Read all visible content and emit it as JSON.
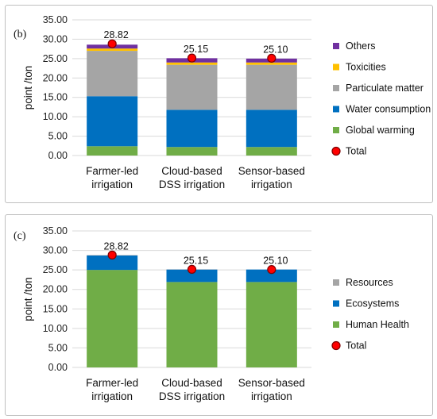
{
  "chart_data": [
    {
      "type": "bar",
      "stacked": true,
      "panel_label": "(b)",
      "ylabel": "point /ton",
      "ylim": [
        0,
        35
      ],
      "yticks": [
        "0.00",
        "5.00",
        "10.00",
        "15.00",
        "20.00",
        "25.00",
        "30.00",
        "35.00"
      ],
      "grid": true,
      "legend_position": "right",
      "categories": [
        [
          "Farmer-led",
          "irrigation"
        ],
        [
          "Cloud-based",
          "DSS irrigation"
        ],
        [
          "Sensor-based",
          "irrigation"
        ]
      ],
      "series": [
        {
          "name": "Global warming",
          "color": "#70ad47",
          "values": [
            2.4,
            2.2,
            2.2
          ]
        },
        {
          "name": "Water consumption",
          "color": "#0070c0",
          "values": [
            12.9,
            9.6,
            9.6
          ]
        },
        {
          "name": "Particulate matter",
          "color": "#a5a5a5",
          "values": [
            11.7,
            11.6,
            11.6
          ]
        },
        {
          "name": "Toxicities",
          "color": "#ffc000",
          "values": [
            0.6,
            0.6,
            0.6
          ]
        },
        {
          "name": "Others",
          "color": "#7030a0",
          "values": [
            1.0,
            1.1,
            1.0
          ]
        }
      ],
      "total": {
        "name": "Total",
        "values": [
          28.82,
          25.15,
          25.1
        ],
        "labels": [
          "28.82",
          "25.15",
          "25.10"
        ]
      },
      "legend_order": [
        "Others",
        "Toxicities",
        "Particulate matter",
        "Water consumption",
        "Global warming",
        "Total"
      ]
    },
    {
      "type": "bar",
      "stacked": true,
      "panel_label": "(c)",
      "ylabel": "point /ton",
      "ylim": [
        0,
        35
      ],
      "yticks": [
        "0.00",
        "5.00",
        "10.00",
        "15.00",
        "20.00",
        "25.00",
        "30.00",
        "35.00"
      ],
      "grid": true,
      "legend_position": "right",
      "categories": [
        [
          "Farmer-led",
          "irrigation"
        ],
        [
          "Cloud-based",
          "DSS irrigation"
        ],
        [
          "Sensor-based",
          "irrigation"
        ]
      ],
      "series": [
        {
          "name": "Human Health",
          "color": "#70ad47",
          "values": [
            25.0,
            21.9,
            21.9
          ]
        },
        {
          "name": "Ecosystems",
          "color": "#0070c0",
          "values": [
            3.7,
            3.2,
            3.2
          ]
        },
        {
          "name": "Resources",
          "color": "#a5a5a5",
          "values": [
            0.1,
            0.05,
            0.0
          ]
        }
      ],
      "total": {
        "name": "Total",
        "values": [
          28.82,
          25.15,
          25.1
        ],
        "labels": [
          "28.82",
          "25.15",
          "25.10"
        ]
      },
      "legend_order": [
        "Resources",
        "Ecosystems",
        "Human Health",
        "Total"
      ]
    }
  ]
}
